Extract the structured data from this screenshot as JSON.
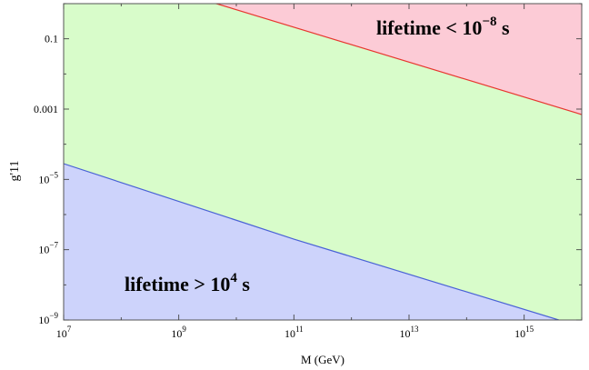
{
  "chart_data": {
    "type": "area",
    "xlabel": "M (GeV)",
    "ylabel": "g'11",
    "xscale": "log",
    "yscale": "log",
    "xlim": [
      10000000.0,
      1e+16
    ],
    "ylim": [
      1e-09,
      1
    ],
    "x_ticks": [
      {
        "value": 10000000.0,
        "base": "10",
        "exp": "7"
      },
      {
        "value": 1000000000.0,
        "base": "10",
        "exp": "9"
      },
      {
        "value": 100000000000.0,
        "base": "10",
        "exp": "11"
      },
      {
        "value": 10000000000000.0,
        "base": "10",
        "exp": "13"
      },
      {
        "value": 1000000000000000.0,
        "base": "10",
        "exp": "15"
      }
    ],
    "y_ticks": [
      {
        "value": 1e-09,
        "base": "10",
        "exp": "−9"
      },
      {
        "value": 1e-07,
        "base": "10",
        "exp": "−7"
      },
      {
        "value": 1e-05,
        "base": "10",
        "exp": "−5"
      },
      {
        "value": 0.001,
        "label": "0.001"
      },
      {
        "value": 0.1,
        "label": "0.1"
      }
    ],
    "shaded_x_range": [
      10000000.0,
      1e+16
    ],
    "grid": false,
    "series": [
      {
        "boundary": "upper",
        "line_color": "#e8362f",
        "fill_color": "#fccbd6",
        "x": [
          10000000.0,
          4500000000.0,
          1e+16
        ],
        "y": [
          3.1,
          1.0,
          0.0007
        ]
      },
      {
        "boundary": "lower",
        "line_color": "#4a62d6",
        "fill_color": "#cdd3fb",
        "x": [
          10000000.0,
          100000000000.0,
          4000000000000000.0
        ],
        "y": [
          2.8e-05,
          2e-07,
          1e-09
        ]
      }
    ],
    "middle_fill_color": "#d8fcca",
    "annotations": [
      {
        "name": "upper",
        "text": "lifetime < 10",
        "exp": "−8",
        "suffix": " s"
      },
      {
        "name": "lower",
        "text": "lifetime > 10",
        "exp": "4",
        "suffix": " s"
      }
    ]
  }
}
